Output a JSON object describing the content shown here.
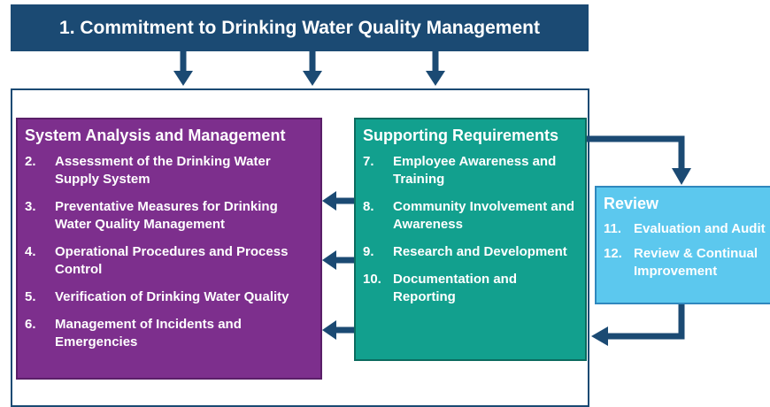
{
  "header": {
    "title": "1. Commitment to Drinking Water Quality Management"
  },
  "system_analysis": {
    "title": "System Analysis and Management",
    "items": [
      {
        "number": "2.",
        "text": "Assessment of the Drinking Water Supply System"
      },
      {
        "number": "3.",
        "text": "Preventative Measures for Drinking Water Quality Management"
      },
      {
        "number": "4.",
        "text": "Operational Procedures and Process Control"
      },
      {
        "number": "5.",
        "text": "Verification of Drinking Water Quality"
      },
      {
        "number": "6.",
        "text": "Management of Incidents and Emergencies"
      }
    ]
  },
  "supporting": {
    "title": "Supporting Requirements",
    "items": [
      {
        "number": "7.",
        "text": "Employee Awareness and Training"
      },
      {
        "number": "8.",
        "text": "Community Involvement and Awareness"
      },
      {
        "number": "9.",
        "text": "Research and Development"
      },
      {
        "number": "10.",
        "text": "Documentation and Reporting"
      }
    ]
  },
  "review": {
    "title": "Review",
    "items": [
      {
        "number": "11.",
        "text": "Evaluation and Audit"
      },
      {
        "number": "12.",
        "text": "Review & Continual Improvement"
      }
    ]
  }
}
